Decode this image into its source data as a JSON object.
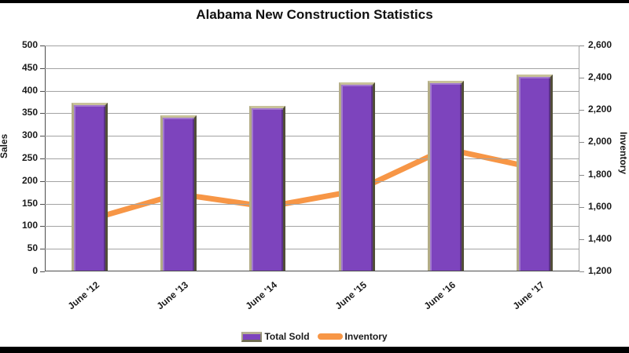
{
  "chart_data": {
    "type": "combo",
    "title": "Alabama New Construction Statistics",
    "categories": [
      "June '12",
      "June '13",
      "June '14",
      "June '15",
      "June '16",
      "June '17"
    ],
    "series": [
      {
        "name": "Total Sold",
        "type": "bar",
        "axis": "left",
        "color": "#7d44bd",
        "values": [
          372,
          343,
          365,
          416,
          421,
          434
        ]
      },
      {
        "name": "Inventory",
        "type": "line",
        "axis": "right",
        "color": "#f79646",
        "values": [
          1520,
          1680,
          1600,
          1700,
          1960,
          1840
        ]
      }
    ],
    "left_axis": {
      "label": "Sales",
      "min": 0,
      "max": 500,
      "step": 50,
      "ticks": [
        "500",
        "450",
        "400",
        "350",
        "300",
        "250",
        "200",
        "150",
        "100",
        "50",
        "0"
      ]
    },
    "right_axis": {
      "label": "Inventory",
      "min": 1200,
      "max": 2600,
      "step": 200,
      "ticks": [
        "2,600",
        "2,400",
        "2,200",
        "2,000",
        "1,800",
        "1,600",
        "1,400",
        "1,200"
      ]
    },
    "grid": "horizontal-only",
    "legend_position": "bottom",
    "colors": {
      "bar_fill": "#7d44bd",
      "bar_bevel_light": "#c8c29a",
      "bar_bevel_dark": "#514e39",
      "line": "#f79646",
      "gridline": "#a3a3a3",
      "axis_line": "#4d4d4d",
      "text": "#1a1a1a",
      "background": "#ffffff",
      "letterbox": "#000000"
    }
  }
}
